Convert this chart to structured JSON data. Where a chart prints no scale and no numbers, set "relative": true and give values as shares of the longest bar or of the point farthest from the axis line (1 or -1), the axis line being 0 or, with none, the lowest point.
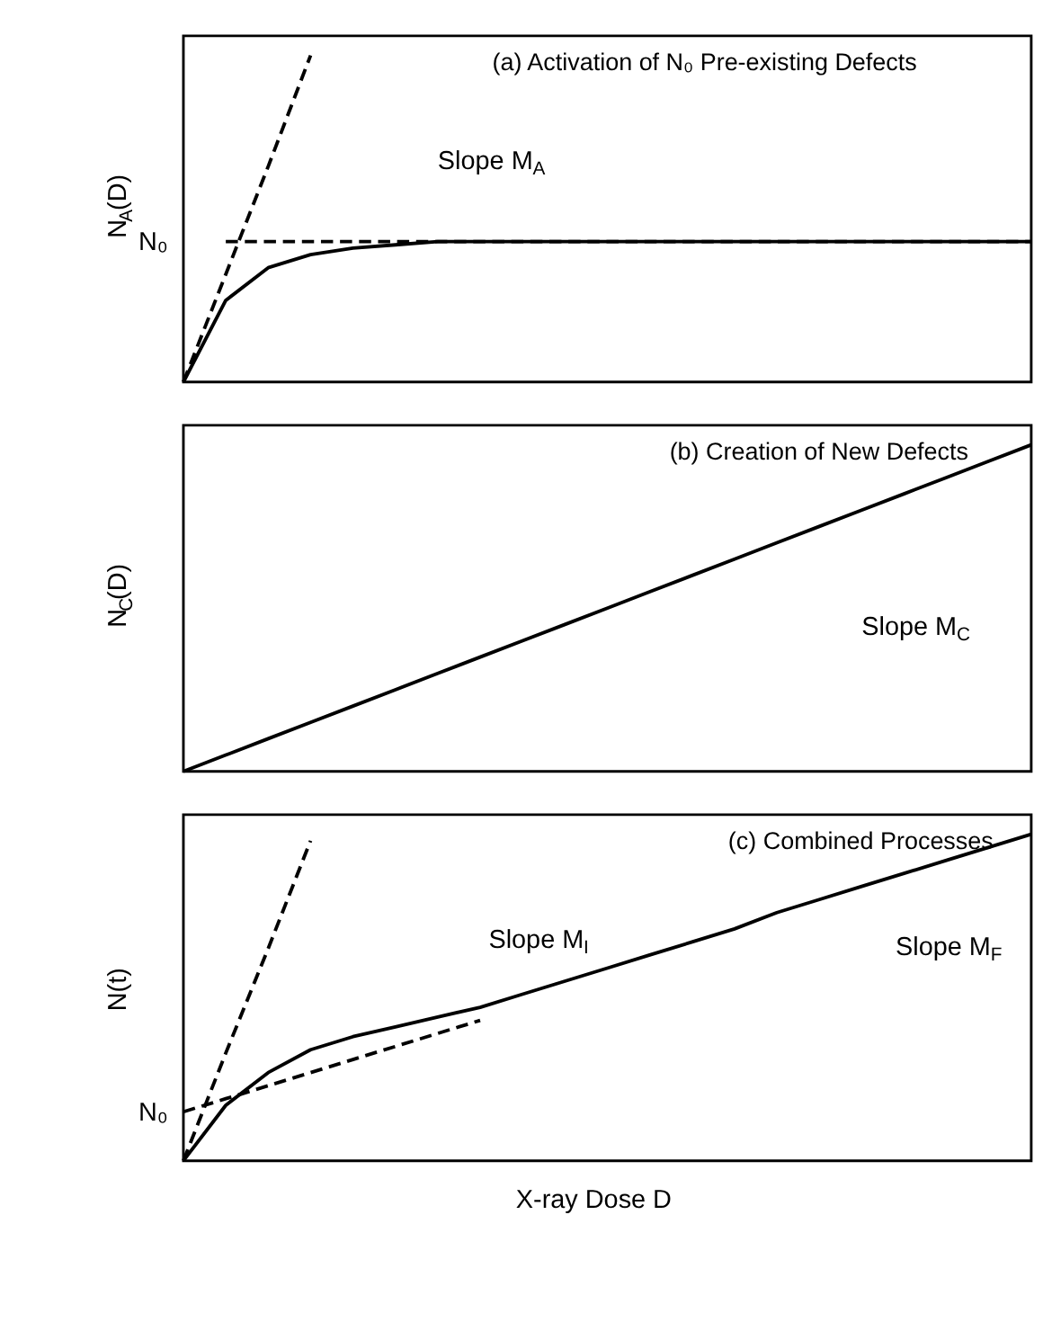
{
  "chart_data": [
    {
      "type": "line",
      "title": "(a) Activation of N₀ Pre-existing Defects",
      "ylabel": "N$_{A}$(D)",
      "relative": true,
      "categories": [
        null,
        null,
        null,
        null,
        null,
        null,
        null,
        null,
        null,
        null,
        null,
        null,
        null,
        null,
        null,
        null,
        null,
        null,
        null,
        null,
        null
      ],
      "series": [
        {
          "color": "#000000",
          "line_style": "solid",
          "values": [
            0,
            0.25,
            0.35,
            0.39,
            0.41,
            0.42,
            0.43,
            0.43,
            0.43,
            0.43,
            0.43,
            0.43,
            0.43,
            0.43,
            0.43,
            0.43,
            0.43,
            0.43,
            0.43,
            0.43,
            0.43
          ]
        },
        {
          "color": "#000000",
          "line_style": "dashed",
          "values": [
            null,
            0.43,
            0.43,
            0.43,
            0.43,
            0.43,
            0.43,
            0.43,
            0.43,
            0.43,
            0.43,
            0.43,
            0.43,
            0.43,
            0.43,
            0.43,
            0.43,
            0.43,
            0.43,
            0.43,
            0.43
          ]
        },
        {
          "color": "#000000",
          "line_style": "dashed",
          "values": [
            0,
            0.33,
            0.66,
            1.0,
            null,
            null,
            null,
            null,
            null,
            null,
            null,
            null,
            null,
            null,
            null,
            null,
            null,
            null,
            null,
            null,
            null
          ]
        }
      ],
      "annotations": [
        "Slope M$_{A}$",
        "N₀"
      ]
    },
    {
      "type": "line",
      "title": "(b) Creation of New Defects",
      "ylabel": "N$_{C}$(D)",
      "relative": true,
      "categories": [
        null,
        null,
        null,
        null,
        null,
        null,
        null,
        null,
        null,
        null,
        null,
        null,
        null,
        null,
        null,
        null,
        null,
        null,
        null,
        null,
        null
      ],
      "series": [
        {
          "color": "#000000",
          "line_style": "solid",
          "values": [
            0,
            0.05,
            0.1,
            0.15,
            0.2,
            0.25,
            0.3,
            0.35,
            0.4,
            0.45,
            0.5,
            0.55,
            0.6,
            0.65,
            0.7,
            0.75,
            0.8,
            0.85,
            0.9,
            0.95,
            1.0
          ]
        }
      ],
      "annotations": [
        "Slope M$_{C}$"
      ]
    },
    {
      "type": "line",
      "title": "(c) Combined Processes",
      "ylabel": "N(t)",
      "xlabel": "X-ray Dose  D",
      "relative": true,
      "categories": [
        null,
        null,
        null,
        null,
        null,
        null,
        null,
        null,
        null,
        null,
        null,
        null,
        null,
        null,
        null,
        null,
        null,
        null,
        null,
        null,
        null
      ],
      "series": [
        {
          "color": "#000000",
          "line_style": "solid",
          "values": [
            0,
            0.17,
            0.27,
            0.34,
            0.38,
            0.41,
            0.44,
            0.47,
            0.51,
            0.55,
            0.59,
            0.63,
            0.67,
            0.71,
            0.76,
            0.8,
            0.84,
            0.88,
            0.92,
            0.96,
            1.0
          ]
        },
        {
          "color": "#000000",
          "line_style": "dashed",
          "values": [
            0.15,
            0.19,
            0.23,
            0.27,
            0.31,
            0.35,
            0.39,
            0.43,
            null,
            null,
            null,
            null,
            null,
            null,
            null,
            null,
            null,
            null,
            null,
            null,
            null
          ]
        },
        {
          "color": "#000000",
          "line_style": "dashed",
          "values": [
            0,
            0.33,
            0.65,
            0.98,
            null,
            null,
            null,
            null,
            null,
            null,
            null,
            null,
            null,
            null,
            null,
            null,
            null,
            null,
            null,
            null,
            null
          ]
        }
      ],
      "annotations": [
        "Slope M$_{I}$",
        "Slope M$_{F}$",
        "N₀"
      ]
    }
  ]
}
